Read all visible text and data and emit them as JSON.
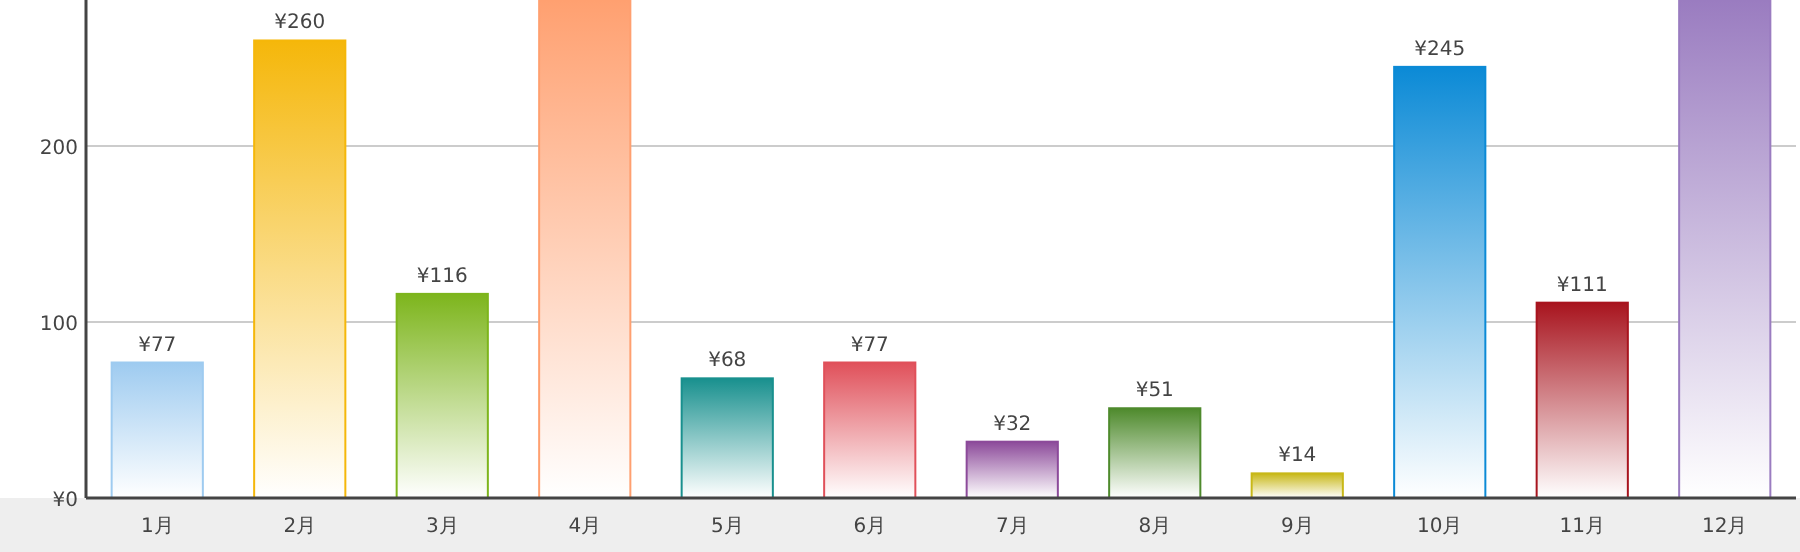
{
  "chart_data": {
    "type": "bar",
    "categories": [
      "1月",
      "2月",
      "3月",
      "4月",
      "5月",
      "6月",
      "7月",
      "8月",
      "9月",
      "10月",
      "11月",
      "12月"
    ],
    "values": [
      77,
      260,
      116,
      283,
      68,
      77,
      32,
      51,
      14,
      245,
      111,
      283
    ],
    "colors": [
      "#9ecbf0",
      "#f5b70a",
      "#7db51c",
      "#ffa070",
      "#18908e",
      "#e0505a",
      "#8c4a9a",
      "#4e8a2c",
      "#c8b818",
      "#0b8ad6",
      "#a8141e",
      "#9a7cc0"
    ],
    "value_labels": [
      "¥77",
      "¥260",
      "¥116",
      null,
      "¥68",
      "¥77",
      "¥32",
      "¥51",
      "¥14",
      "¥245",
      "¥111",
      null
    ],
    "ylim": [
      0,
      283
    ],
    "yticks": [
      {
        "value": 0,
        "label": "¥0"
      },
      100,
      200
    ],
    "grid": "y"
  }
}
